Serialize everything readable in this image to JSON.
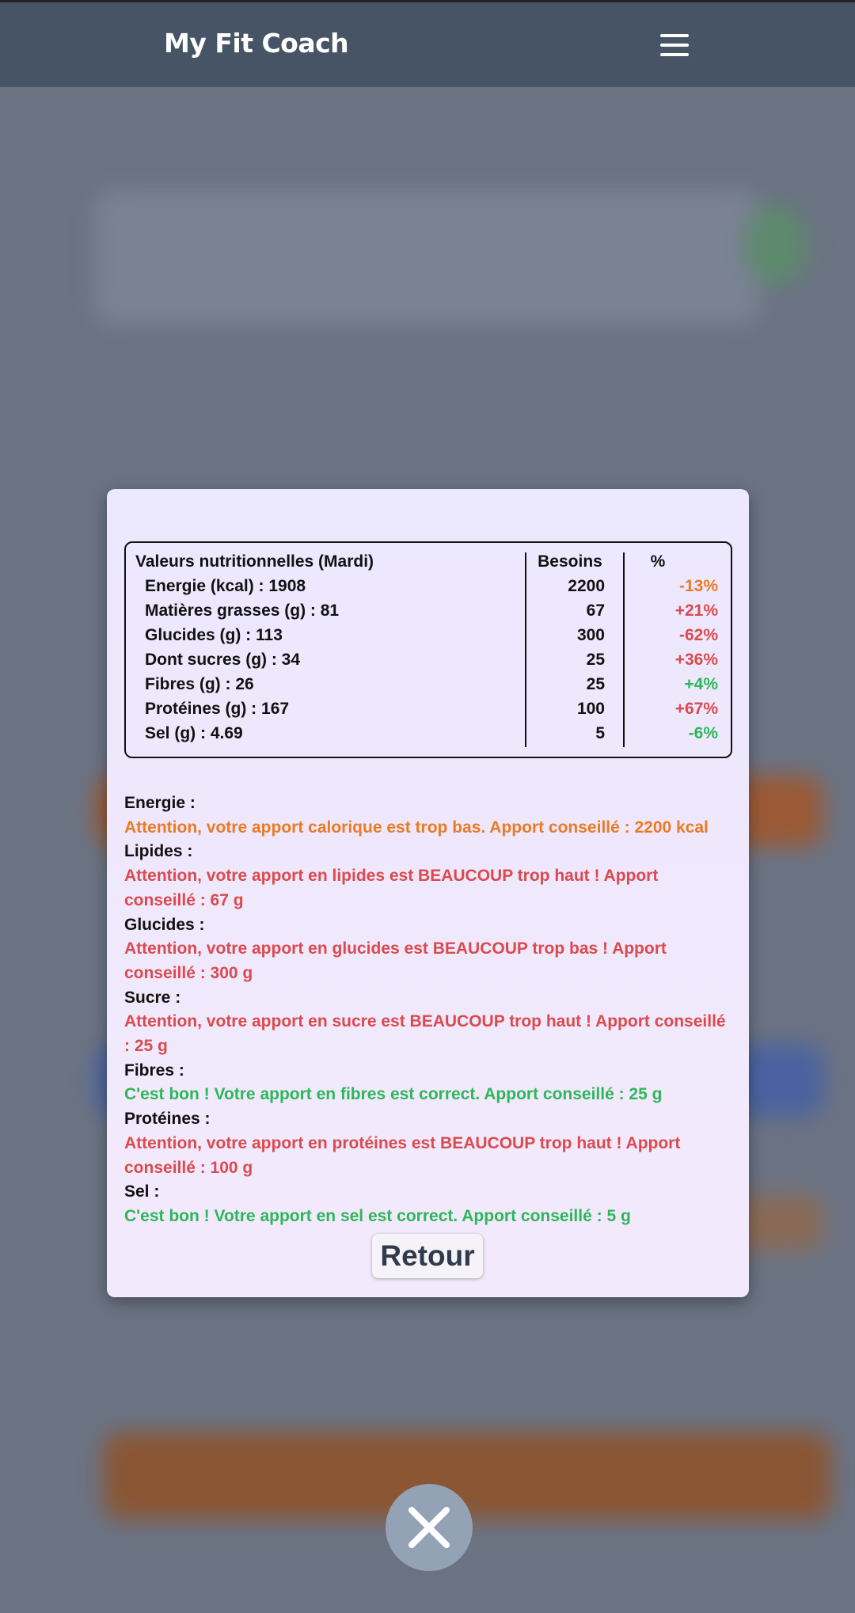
{
  "header": {
    "app_title": "My Fit Coach",
    "menu_icon": "hamburger-menu-icon"
  },
  "table": {
    "header": {
      "title": "Valeurs nutritionnelles (Mardi)",
      "col_needs": "Besoins",
      "col_percent": "%"
    },
    "rows": [
      {
        "label": "Energie (kcal) : 1908",
        "needs": "2200",
        "percent": "-13%",
        "status": "orange"
      },
      {
        "label": "Matières grasses (g) : 81",
        "needs": "67",
        "percent": "+21%",
        "status": "red"
      },
      {
        "label": "Glucides (g) : 113",
        "needs": "300",
        "percent": "-62%",
        "status": "red"
      },
      {
        "label": "Dont sucres (g) : 34",
        "needs": "25",
        "percent": "+36%",
        "status": "red"
      },
      {
        "label": "Fibres (g) : 26",
        "needs": "25",
        "percent": "+4%",
        "status": "green"
      },
      {
        "label": "Protéines (g) : 167",
        "needs": "100",
        "percent": "+67%",
        "status": "red"
      },
      {
        "label": "Sel (g) : 4.69",
        "needs": "5",
        "percent": "-6%",
        "status": "green"
      }
    ]
  },
  "messages": [
    {
      "label": "Energie :",
      "text": "Attention, votre apport calorique est trop bas. Apport conseillé : 2200 kcal",
      "status": "orange"
    },
    {
      "label": "Lipides :",
      "text": "Attention, votre apport en lipides est BEAUCOUP trop haut ! Apport conseillé : 67 g",
      "status": "red"
    },
    {
      "label": "Glucides :",
      "text": "Attention, votre apport en glucides est BEAUCOUP trop bas ! Apport conseillé : 300 g",
      "status": "red"
    },
    {
      "label": "Sucre :",
      "text": "Attention, votre apport en sucre est BEAUCOUP trop haut ! Apport conseillé : 25 g",
      "status": "red"
    },
    {
      "label": "Fibres :",
      "text": "C'est bon ! Votre apport en fibres est correct. Apport conseillé : 25 g",
      "status": "green"
    },
    {
      "label": "Protéines :",
      "text": "Attention, votre apport en protéines est BEAUCOUP trop haut ! Apport conseillé : 100 g",
      "status": "red"
    },
    {
      "label": "Sel :",
      "text": "C'est bon ! Votre apport en sel est correct. Apport conseillé : 5 g",
      "status": "green"
    }
  ],
  "buttons": {
    "retour_label": "Retour",
    "close_icon": "close-icon"
  },
  "colors": {
    "header_bg": "#465466",
    "warning_orange": "#ea7a24",
    "alert_red": "#db4a4e",
    "ok_green": "#2db759"
  }
}
